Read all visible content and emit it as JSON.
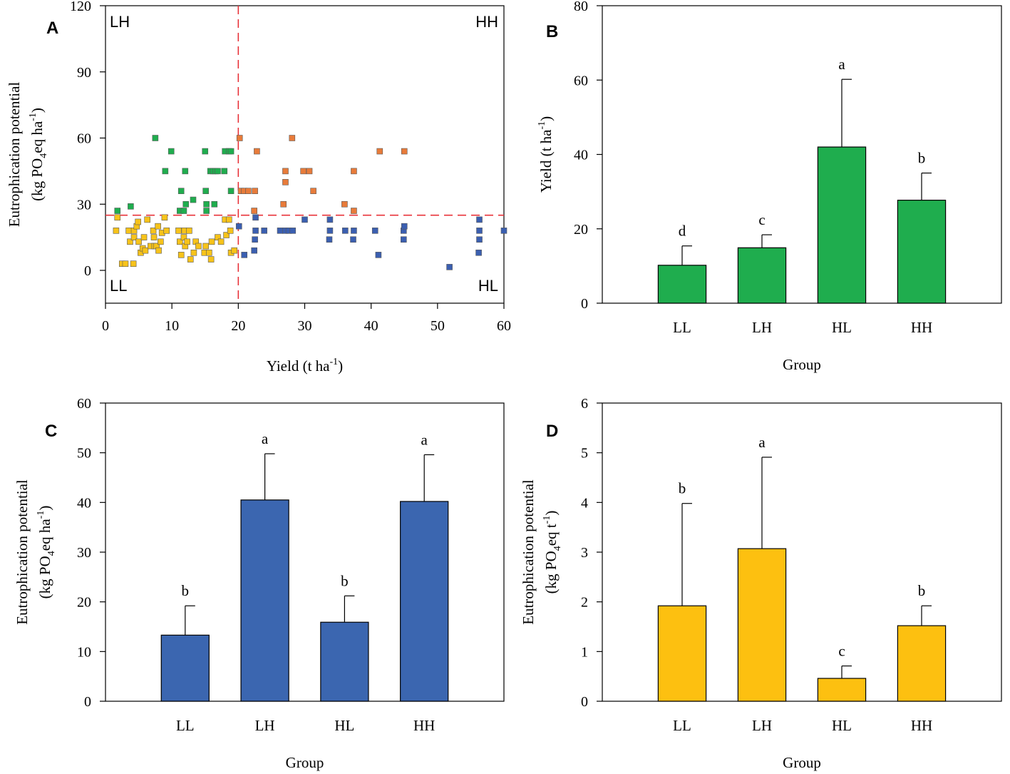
{
  "chart_data": [
    {
      "id": "A",
      "type": "scatter",
      "panel_label": "A",
      "xlabel": "Yield (t ha",
      "xlabel_sup": "-1",
      "xlabel_end": ")",
      "ylabel_line1": "Eutrophication potential",
      "ylabel_line2_a": "(kg PO",
      "ylabel_line2_sub": "4",
      "ylabel_line2_b": "eq ha",
      "ylabel_line2_sup": "-1",
      "ylabel_line2_c": ")",
      "xlim": [
        0,
        60
      ],
      "ylim": [
        -15,
        120
      ],
      "xticks": [
        0,
        10,
        20,
        30,
        40,
        50,
        60
      ],
      "yticks": [
        0,
        30,
        60,
        90,
        120
      ],
      "thresholds": {
        "x": 20,
        "y": 25,
        "color": "#e8333a"
      },
      "quadrant_labels": {
        "top_left": "LH",
        "top_right": "HH",
        "bottom_left": "LL",
        "bottom_right": "HL"
      },
      "series": [
        {
          "name": "LL",
          "color": "#f7c31a",
          "points": [
            [
              1.8,
              24
            ],
            [
              1.6,
              18
            ],
            [
              2.5,
              3
            ],
            [
              3,
              3
            ],
            [
              3.5,
              18
            ],
            [
              3.7,
              13
            ],
            [
              4.2,
              3
            ],
            [
              4.3,
              18
            ],
            [
              4.3,
              15
            ],
            [
              4.7,
              20
            ],
            [
              4.9,
              22
            ],
            [
              5,
              13
            ],
            [
              5.3,
              8
            ],
            [
              5.6,
              10
            ],
            [
              5.8,
              15
            ],
            [
              6,
              9
            ],
            [
              6.3,
              23
            ],
            [
              6.8,
              11
            ],
            [
              7.2,
              18
            ],
            [
              7.3,
              15
            ],
            [
              7.4,
              11
            ],
            [
              7.7,
              11
            ],
            [
              7.9,
              20
            ],
            [
              8,
              9
            ],
            [
              8.3,
              13
            ],
            [
              8.5,
              17
            ],
            [
              8.9,
              24
            ],
            [
              9.2,
              18
            ],
            [
              11,
              18
            ],
            [
              11.2,
              13
            ],
            [
              11.4,
              7
            ],
            [
              11.8,
              15
            ],
            [
              11.9,
              18
            ],
            [
              12,
              11
            ],
            [
              12.3,
              13
            ],
            [
              12.6,
              18
            ],
            [
              12.8,
              5
            ],
            [
              13.3,
              8
            ],
            [
              13.6,
              13
            ],
            [
              14,
              11
            ],
            [
              14.9,
              8
            ],
            [
              15.1,
              11
            ],
            [
              15.6,
              8
            ],
            [
              15.9,
              5
            ],
            [
              16,
              13
            ],
            [
              16.9,
              15
            ],
            [
              17.4,
              13
            ],
            [
              18,
              23
            ],
            [
              18.2,
              16
            ],
            [
              18.6,
              23
            ],
            [
              18.8,
              18
            ],
            [
              18.9,
              8
            ],
            [
              19.4,
              9
            ]
          ]
        },
        {
          "name": "LH",
          "color": "#1fad4e",
          "points": [
            [
              1.8,
              27
            ],
            [
              3.8,
              29
            ],
            [
              7.5,
              60
            ],
            [
              9,
              45
            ],
            [
              9.9,
              54
            ],
            [
              11.2,
              27
            ],
            [
              11.4,
              36
            ],
            [
              11.8,
              27
            ],
            [
              12,
              45
            ],
            [
              12.1,
              30
            ],
            [
              13.2,
              32
            ],
            [
              15,
              54
            ],
            [
              15.1,
              36
            ],
            [
              15.2,
              27
            ],
            [
              15.2,
              30
            ],
            [
              15.8,
              45
            ],
            [
              16.2,
              45
            ],
            [
              16.6,
              45
            ],
            [
              16.9,
              45
            ],
            [
              16.4,
              30
            ],
            [
              17.9,
              45
            ],
            [
              18,
              54
            ],
            [
              18.6,
              54
            ],
            [
              18.9,
              54
            ],
            [
              18.9,
              36
            ]
          ]
        },
        {
          "name": "HH",
          "color": "#e87b3a",
          "points": [
            [
              20.2,
              60
            ],
            [
              20.4,
              36
            ],
            [
              20.9,
              36
            ],
            [
              21.5,
              36
            ],
            [
              22.4,
              27
            ],
            [
              22.5,
              36
            ],
            [
              22.8,
              54
            ],
            [
              26.8,
              30
            ],
            [
              27.1,
              45
            ],
            [
              27.1,
              40
            ],
            [
              28.1,
              60
            ],
            [
              29.8,
              45
            ],
            [
              30.7,
              45
            ],
            [
              31.3,
              36
            ],
            [
              36,
              30
            ],
            [
              37.4,
              27
            ],
            [
              37.4,
              45
            ],
            [
              41.3,
              54
            ],
            [
              45,
              54
            ]
          ]
        },
        {
          "name": "HL",
          "color": "#3b5fb0",
          "points": [
            [
              20.1,
              20
            ],
            [
              20.9,
              7
            ],
            [
              22.4,
              9
            ],
            [
              22.5,
              14
            ],
            [
              22.6,
              18
            ],
            [
              22.6,
              24
            ],
            [
              23.9,
              18
            ],
            [
              26.3,
              18
            ],
            [
              27.1,
              18
            ],
            [
              27.6,
              18
            ],
            [
              28.2,
              18
            ],
            [
              30,
              23
            ],
            [
              33.7,
              14
            ],
            [
              33.8,
              18
            ],
            [
              33.8,
              23
            ],
            [
              36.1,
              18
            ],
            [
              37.3,
              14
            ],
            [
              37.4,
              18
            ],
            [
              40.6,
              18
            ],
            [
              41.1,
              7
            ],
            [
              44.9,
              14
            ],
            [
              44.9,
              18
            ],
            [
              45,
              20
            ],
            [
              51.8,
              1.5
            ],
            [
              56.2,
              8
            ],
            [
              56.3,
              14
            ],
            [
              56.3,
              18
            ],
            [
              56.3,
              23
            ],
            [
              60,
              18
            ]
          ]
        }
      ]
    },
    {
      "id": "B",
      "type": "bar",
      "panel_label": "B",
      "categories": [
        "LL",
        "LH",
        "HL",
        "HH"
      ],
      "values": [
        10.2,
        14.9,
        42,
        27.7
      ],
      "errors": [
        5.2,
        3.5,
        18.2,
        7.3
      ],
      "letters": [
        "d",
        "c",
        "a",
        "b"
      ],
      "color": "#1fad4e",
      "ylim": [
        0,
        80
      ],
      "yticks": [
        0,
        20,
        40,
        60,
        80
      ],
      "xlabel": "Group",
      "ylabel_a": "Yield (t ha",
      "ylabel_sup": "-1",
      "ylabel_b": ")"
    },
    {
      "id": "C",
      "type": "bar",
      "panel_label": "C",
      "categories": [
        "LL",
        "LH",
        "HL",
        "HH"
      ],
      "values": [
        13.3,
        40.5,
        15.9,
        40.2
      ],
      "errors": [
        5.9,
        9.3,
        5.3,
        9.4
      ],
      "letters": [
        "b",
        "a",
        "b",
        "a"
      ],
      "color": "#3b66b0",
      "ylim": [
        0,
        60
      ],
      "yticks": [
        0,
        10,
        20,
        30,
        40,
        50,
        60
      ],
      "xlabel": "Group",
      "ylabel_line1": "Eutrophication potential",
      "ylabel_line2_a": "(kg PO",
      "ylabel_line2_sub": "4",
      "ylabel_line2_b": "eq ha",
      "ylabel_line2_sup": "-1",
      "ylabel_line2_c": ")"
    },
    {
      "id": "D",
      "type": "bar",
      "panel_label": "D",
      "categories": [
        "LL",
        "LH",
        "HL",
        "HH"
      ],
      "values": [
        1.92,
        3.07,
        0.46,
        1.52
      ],
      "errors": [
        2.06,
        1.84,
        0.25,
        0.4
      ],
      "letters": [
        "b",
        "a",
        "c",
        "b"
      ],
      "color": "#fdc010",
      "ylim": [
        0,
        6
      ],
      "yticks": [
        0,
        1,
        2,
        3,
        4,
        5,
        6
      ],
      "xlabel": "Group",
      "ylabel_line1": "Eutrophication potential",
      "ylabel_line2_a": "(kg PO",
      "ylabel_line2_sub": "4",
      "ylabel_line2_b": "eq t",
      "ylabel_line2_sup": "-1",
      "ylabel_line2_c": ")"
    }
  ]
}
